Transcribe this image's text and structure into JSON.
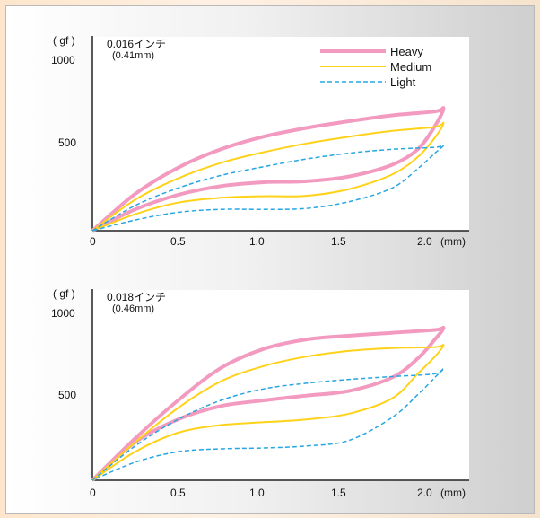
{
  "colors": {
    "heavy": "#f29ac0",
    "medium": "#ffd21a",
    "light": "#28a6e0"
  },
  "chart_data": [
    {
      "type": "line",
      "title": "0.016インチ",
      "subtitle": "(0.41mm)",
      "ylabel": "( gf )",
      "xlabel": "(mm)",
      "xlim": [
        0,
        2.2
      ],
      "ylim": [
        0,
        1000
      ],
      "x_ticks": [
        "0",
        "0.5",
        "1.0",
        "1.5",
        "2.0"
      ],
      "y_ticks": [
        "500",
        "1000"
      ],
      "legend": [
        "Heavy",
        "Medium",
        "Light"
      ],
      "legend_position": "top-right",
      "series": [
        {
          "name": "Heavy",
          "color_key": "heavy",
          "dash": false,
          "points": [
            [
              0,
              0
            ],
            [
              0.25,
              190
            ],
            [
              0.5,
              325
            ],
            [
              0.75,
              420
            ],
            [
              1.0,
              485
            ],
            [
              1.25,
              530
            ],
            [
              1.5,
              565
            ],
            [
              1.75,
              595
            ],
            [
              2.0,
              615
            ],
            [
              2.05,
              630
            ],
            [
              2.0,
              540
            ],
            [
              1.9,
              420
            ],
            [
              1.75,
              340
            ],
            [
              1.5,
              280
            ],
            [
              1.25,
              255
            ],
            [
              1.0,
              250
            ],
            [
              0.75,
              230
            ],
            [
              0.5,
              185
            ],
            [
              0.25,
              110
            ],
            [
              0,
              0
            ]
          ]
        },
        {
          "name": "Medium",
          "color_key": "medium",
          "dash": false,
          "points": [
            [
              0,
              0
            ],
            [
              0.25,
              160
            ],
            [
              0.5,
              270
            ],
            [
              0.75,
              350
            ],
            [
              1.0,
              405
            ],
            [
              1.25,
              450
            ],
            [
              1.5,
              485
            ],
            [
              1.75,
              515
            ],
            [
              2.0,
              535
            ],
            [
              2.05,
              555
            ],
            [
              2.0,
              480
            ],
            [
              1.9,
              380
            ],
            [
              1.75,
              290
            ],
            [
              1.5,
              215
            ],
            [
              1.25,
              180
            ],
            [
              1.0,
              178
            ],
            [
              0.75,
              170
            ],
            [
              0.5,
              145
            ],
            [
              0.25,
              85
            ],
            [
              0,
              0
            ]
          ]
        },
        {
          "name": "Light",
          "color_key": "light",
          "dash": true,
          "points": [
            [
              0,
              0
            ],
            [
              0.25,
              130
            ],
            [
              0.5,
              220
            ],
            [
              0.75,
              285
            ],
            [
              1.0,
              330
            ],
            [
              1.25,
              370
            ],
            [
              1.5,
              400
            ],
            [
              1.75,
              420
            ],
            [
              2.0,
              430
            ],
            [
              2.05,
              440
            ],
            [
              2.0,
              400
            ],
            [
              1.9,
              320
            ],
            [
              1.75,
              220
            ],
            [
              1.5,
              150
            ],
            [
              1.25,
              115
            ],
            [
              1.0,
              110
            ],
            [
              0.75,
              110
            ],
            [
              0.5,
              95
            ],
            [
              0.25,
              55
            ],
            [
              0,
              0
            ]
          ]
        }
      ]
    },
    {
      "type": "line",
      "title": "0.018インチ",
      "subtitle": "(0.46mm)",
      "ylabel": "( gf )",
      "xlabel": "(mm)",
      "xlim": [
        0,
        2.2
      ],
      "ylim": [
        0,
        1000
      ],
      "x_ticks": [
        "0",
        "0.5",
        "1.0",
        "1.5",
        "2.0"
      ],
      "y_ticks": [
        "500",
        "1000"
      ],
      "series": [
        {
          "name": "Heavy",
          "color_key": "heavy",
          "dash": false,
          "points": [
            [
              0,
              0
            ],
            [
              0.25,
              220
            ],
            [
              0.5,
              420
            ],
            [
              0.75,
              590
            ],
            [
              1.0,
              690
            ],
            [
              1.25,
              740
            ],
            [
              1.5,
              760
            ],
            [
              1.75,
              775
            ],
            [
              2.0,
              790
            ],
            [
              2.05,
              800
            ],
            [
              2.0,
              740
            ],
            [
              1.9,
              640
            ],
            [
              1.75,
              540
            ],
            [
              1.5,
              470
            ],
            [
              1.25,
              445
            ],
            [
              1.0,
              420
            ],
            [
              0.75,
              390
            ],
            [
              0.5,
              320
            ],
            [
              0.25,
              200
            ],
            [
              0,
              0
            ]
          ]
        },
        {
          "name": "Medium",
          "color_key": "medium",
          "dash": false,
          "points": [
            [
              0,
              0
            ],
            [
              0.25,
              200
            ],
            [
              0.5,
              380
            ],
            [
              0.75,
              520
            ],
            [
              1.0,
              600
            ],
            [
              1.25,
              650
            ],
            [
              1.5,
              680
            ],
            [
              1.75,
              695
            ],
            [
              2.0,
              700
            ],
            [
              2.05,
              710
            ],
            [
              2.0,
              650
            ],
            [
              1.9,
              560
            ],
            [
              1.75,
              430
            ],
            [
              1.5,
              350
            ],
            [
              1.25,
              320
            ],
            [
              1.0,
              305
            ],
            [
              0.75,
              290
            ],
            [
              0.5,
              250
            ],
            [
              0.25,
              150
            ],
            [
              0,
              0
            ]
          ]
        },
        {
          "name": "Light",
          "color_key": "light",
          "dash": true,
          "points": [
            [
              0,
              0
            ],
            [
              0.25,
              180
            ],
            [
              0.5,
              320
            ],
            [
              0.75,
              420
            ],
            [
              1.0,
              480
            ],
            [
              1.25,
              510
            ],
            [
              1.5,
              530
            ],
            [
              1.75,
              545
            ],
            [
              2.0,
              560
            ],
            [
              2.05,
              590
            ],
            [
              2.0,
              540
            ],
            [
              1.9,
              450
            ],
            [
              1.75,
              330
            ],
            [
              1.5,
              210
            ],
            [
              1.25,
              180
            ],
            [
              1.0,
              170
            ],
            [
              0.75,
              165
            ],
            [
              0.5,
              150
            ],
            [
              0.25,
              95
            ],
            [
              0,
              0
            ]
          ]
        }
      ]
    }
  ]
}
